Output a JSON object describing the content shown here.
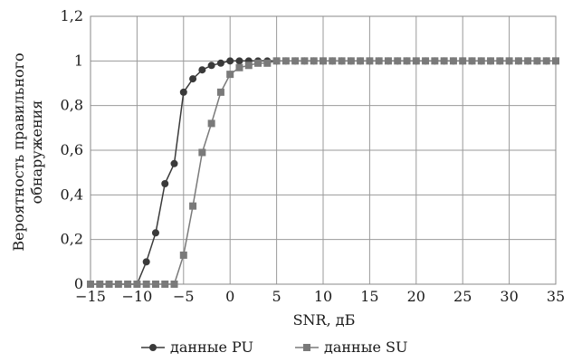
{
  "chart_data": {
    "type": "line",
    "xlabel": "SNR, дБ",
    "ylabel_lines": [
      "Вероятность правильного",
      "обнаружения"
    ],
    "xlim": [
      -15,
      35
    ],
    "ylim": [
      0,
      1.2
    ],
    "x_ticks": [
      "−15",
      "−10",
      "−5",
      "0",
      "5",
      "10",
      "15",
      "20",
      "25",
      "30",
      "35"
    ],
    "y_ticks": [
      "0",
      "0,2",
      "0,4",
      "0,6",
      "0,8",
      "1",
      "1,2"
    ],
    "grid": true,
    "legend_position": "bottom",
    "x": [
      -15,
      -14,
      -13,
      -12,
      -11,
      -10,
      -9,
      -8,
      -7,
      -6,
      -5,
      -4,
      -3,
      -2,
      -1,
      0,
      1,
      2,
      3,
      4,
      5,
      6,
      7,
      8,
      9,
      10,
      11,
      12,
      13,
      14,
      15,
      16,
      17,
      18,
      19,
      20,
      21,
      22,
      23,
      24,
      25,
      26,
      27,
      28,
      29,
      30,
      31,
      32,
      33,
      34,
      35
    ],
    "series": [
      {
        "name": "данные PU",
        "marker": "circle",
        "color": "#3a3a3a",
        "values": [
          0,
          0,
          0,
          0,
          0,
          0,
          0.1,
          0.23,
          0.45,
          0.54,
          0.86,
          0.92,
          0.96,
          0.98,
          0.99,
          1,
          1,
          1,
          1,
          1,
          1,
          1,
          1,
          1,
          1,
          1,
          1,
          1,
          1,
          1,
          1,
          1,
          1,
          1,
          1,
          1,
          1,
          1,
          1,
          1,
          1,
          1,
          1,
          1,
          1,
          1,
          1,
          1,
          1,
          1,
          1
        ]
      },
      {
        "name": "данные SU",
        "marker": "square",
        "color": "#7a7a7a",
        "values": [
          0,
          0,
          0,
          0,
          0,
          0,
          0,
          0,
          0,
          0,
          0.13,
          0.35,
          0.59,
          0.72,
          0.86,
          0.94,
          0.97,
          0.98,
          0.99,
          0.99,
          1,
          1,
          1,
          1,
          1,
          1,
          1,
          1,
          1,
          1,
          1,
          1,
          1,
          1,
          1,
          1,
          1,
          1,
          1,
          1,
          1,
          1,
          1,
          1,
          1,
          1,
          1,
          1,
          1,
          1,
          1
        ]
      }
    ]
  }
}
